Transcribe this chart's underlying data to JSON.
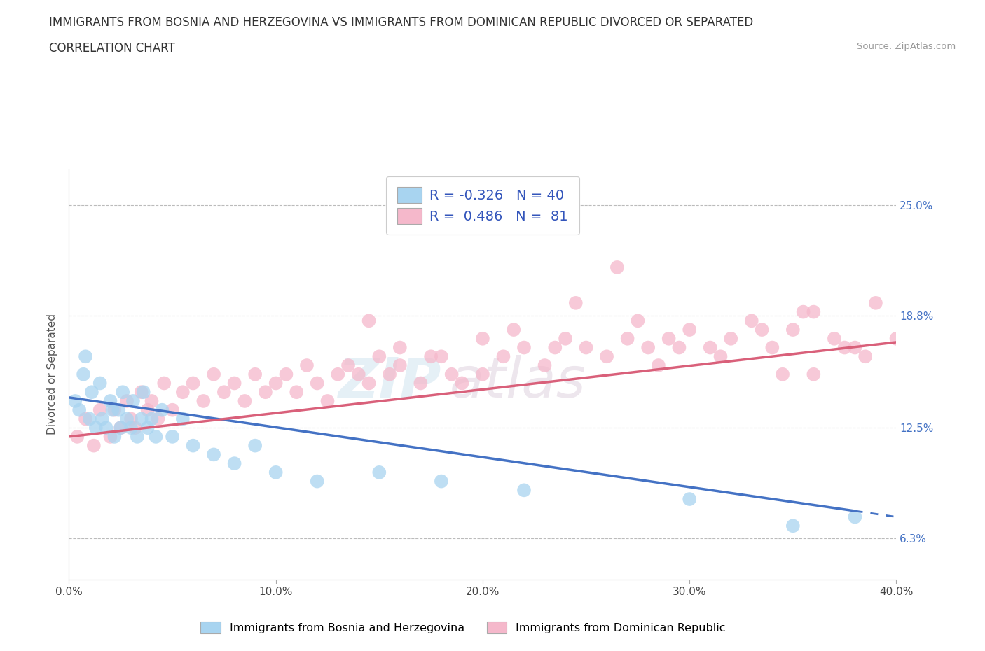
{
  "title_line1": "IMMIGRANTS FROM BOSNIA AND HERZEGOVINA VS IMMIGRANTS FROM DOMINICAN REPUBLIC DIVORCED OR SEPARATED",
  "title_line2": "CORRELATION CHART",
  "source": "Source: ZipAtlas.com",
  "ylabel": "Divorced or Separated",
  "xlim": [
    0.0,
    40.0
  ],
  "ylim": [
    4.0,
    27.0
  ],
  "ytick_vals": [
    6.3,
    12.5,
    18.8,
    25.0
  ],
  "ytick_labels": [
    "6.3%",
    "12.5%",
    "18.8%",
    "25.0%"
  ],
  "xtick_vals": [
    0.0,
    10.0,
    20.0,
    30.0,
    40.0
  ],
  "xtick_labels": [
    "0.0%",
    "10.0%",
    "20.0%",
    "30.0%",
    "40.0%"
  ],
  "color_bosnia": "#a8d4f0",
  "color_dominican": "#f5b8cb",
  "color_line_bosnia": "#4472c4",
  "color_line_dominican": "#d9607a",
  "bosnia_x": [
    0.3,
    0.5,
    0.7,
    0.8,
    1.0,
    1.1,
    1.3,
    1.5,
    1.6,
    1.8,
    2.0,
    2.1,
    2.2,
    2.4,
    2.5,
    2.6,
    2.8,
    3.0,
    3.1,
    3.3,
    3.5,
    3.6,
    3.8,
    4.0,
    4.2,
    4.5,
    5.0,
    5.5,
    6.0,
    7.0,
    8.0,
    9.0,
    10.0,
    12.0,
    15.0,
    18.0,
    22.0,
    30.0,
    35.0,
    38.0
  ],
  "bosnia_y": [
    14.0,
    13.5,
    15.5,
    16.5,
    13.0,
    14.5,
    12.5,
    15.0,
    13.0,
    12.5,
    14.0,
    13.5,
    12.0,
    13.5,
    12.5,
    14.5,
    13.0,
    12.5,
    14.0,
    12.0,
    13.0,
    14.5,
    12.5,
    13.0,
    12.0,
    13.5,
    12.0,
    13.0,
    11.5,
    11.0,
    10.5,
    11.5,
    10.0,
    9.5,
    10.0,
    9.5,
    9.0,
    8.5,
    7.0,
    7.5
  ],
  "dominican_x": [
    0.4,
    0.8,
    1.2,
    1.5,
    2.0,
    2.2,
    2.5,
    2.8,
    3.0,
    3.2,
    3.5,
    3.8,
    4.0,
    4.3,
    4.6,
    5.0,
    5.5,
    6.0,
    6.5,
    7.0,
    7.5,
    8.0,
    8.5,
    9.0,
    9.5,
    10.0,
    10.5,
    11.0,
    11.5,
    12.0,
    12.5,
    13.0,
    13.5,
    14.0,
    14.5,
    15.0,
    15.5,
    16.0,
    17.0,
    18.0,
    19.0,
    20.0,
    21.0,
    22.0,
    23.0,
    24.0,
    25.0,
    26.0,
    27.0,
    28.0,
    29.0,
    30.0,
    31.0,
    32.0,
    33.0,
    34.0,
    35.0,
    36.0,
    37.0,
    38.0,
    39.0,
    40.0,
    27.5,
    29.5,
    31.5,
    33.5,
    35.5,
    37.5,
    24.5,
    26.5,
    36.0,
    38.5,
    16.0,
    18.5,
    21.5,
    14.5,
    17.5,
    20.0,
    23.5,
    28.5,
    34.5
  ],
  "dominican_y": [
    12.0,
    13.0,
    11.5,
    13.5,
    12.0,
    13.5,
    12.5,
    14.0,
    13.0,
    12.5,
    14.5,
    13.5,
    14.0,
    13.0,
    15.0,
    13.5,
    14.5,
    15.0,
    14.0,
    15.5,
    14.5,
    15.0,
    14.0,
    15.5,
    14.5,
    15.0,
    15.5,
    14.5,
    16.0,
    15.0,
    14.0,
    15.5,
    16.0,
    15.5,
    15.0,
    16.5,
    15.5,
    16.0,
    15.0,
    16.5,
    15.0,
    15.5,
    16.5,
    17.0,
    16.0,
    17.5,
    17.0,
    16.5,
    17.5,
    17.0,
    17.5,
    18.0,
    17.0,
    17.5,
    18.5,
    17.0,
    18.0,
    19.0,
    17.5,
    17.0,
    19.5,
    17.5,
    18.5,
    17.0,
    16.5,
    18.0,
    19.0,
    17.0,
    19.5,
    21.5,
    15.5,
    16.5,
    17.0,
    15.5,
    18.0,
    18.5,
    16.5,
    17.5,
    17.0,
    16.0,
    15.5
  ],
  "bosnia_trend_x0": 0.0,
  "bosnia_trend_y0": 14.2,
  "bosnia_trend_x1": 40.0,
  "bosnia_trend_y1": 7.5,
  "dominican_trend_x0": 0.0,
  "dominican_trend_y0": 12.0,
  "dominican_trend_x1": 40.0,
  "dominican_trend_y1": 17.3
}
